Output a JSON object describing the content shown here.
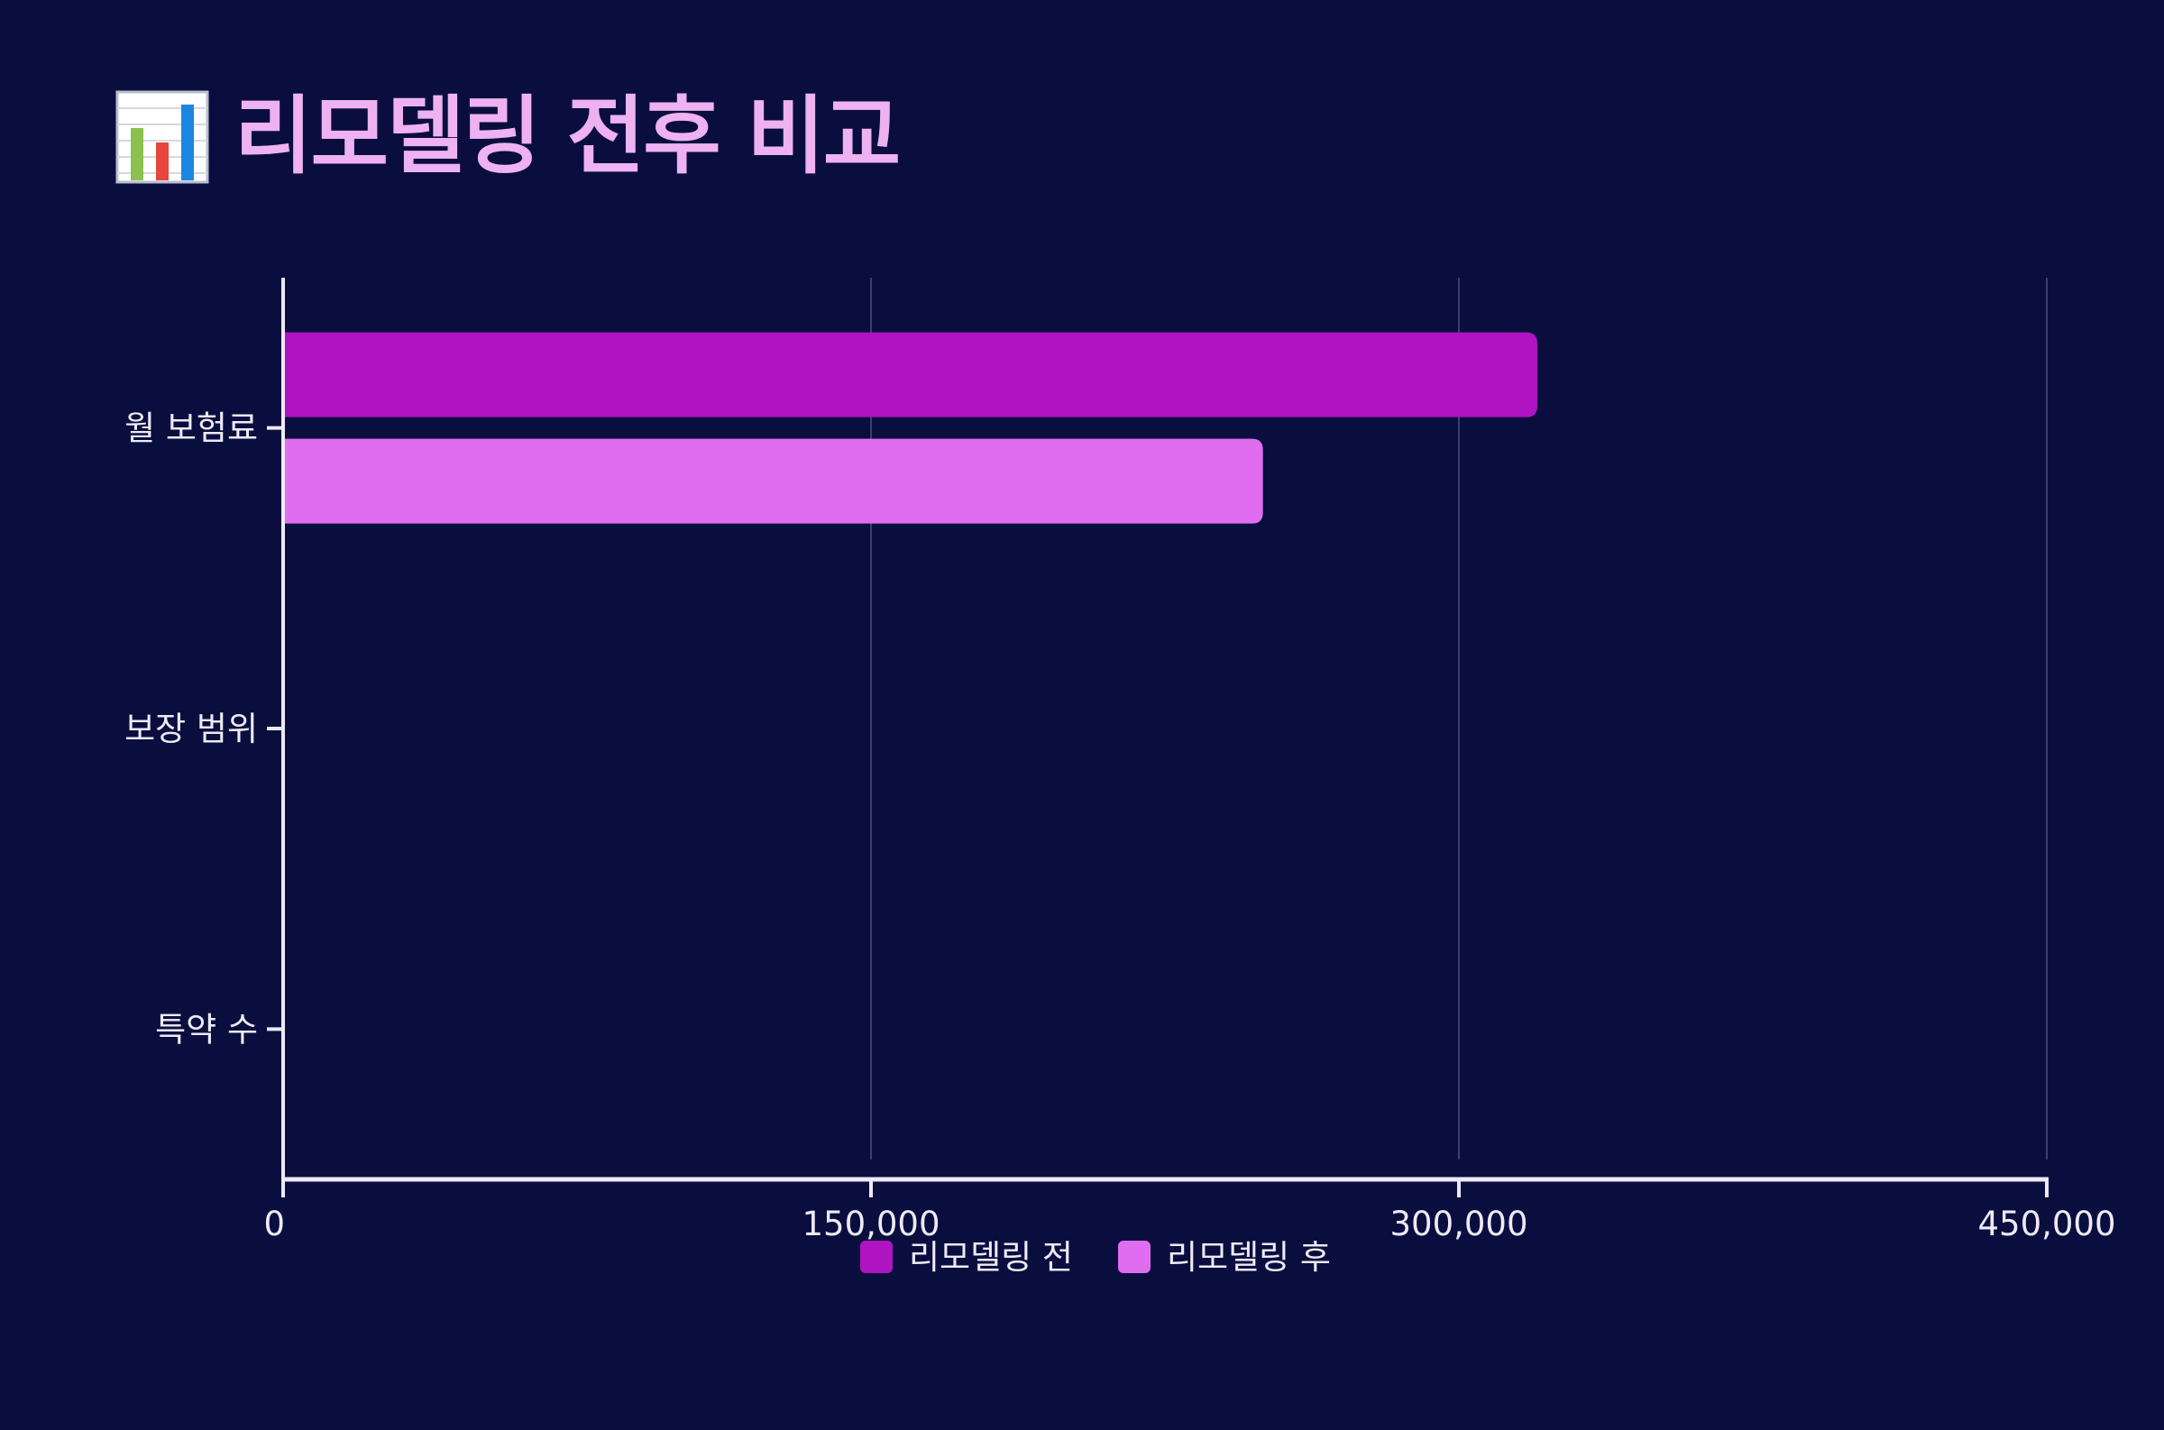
{
  "title": "리모델링 전후 비교",
  "title_icon": "bar-chart-icon",
  "colors": {
    "background": "#0a0e3f",
    "title": "#eeb1f2",
    "axis": "#eeeaf5",
    "grid": "#3a3f6e",
    "tick_text": "#eeeaf5"
  },
  "chart_data": {
    "type": "bar",
    "orientation": "horizontal",
    "categories": [
      "월 보험료",
      "보장 범위",
      "특약 수"
    ],
    "series": [
      {
        "name": "리모델링 전",
        "color": "#b014c2",
        "values": [
          320000,
          null,
          null
        ]
      },
      {
        "name": "리모델링 후",
        "color": "#e06df0",
        "values": [
          250000,
          null,
          null
        ]
      }
    ],
    "xlim": [
      0,
      450000
    ],
    "xticks": [
      0,
      150000,
      300000,
      450000
    ],
    "xtick_labels": [
      "0",
      "150,000",
      "300,000",
      "450,000"
    ],
    "grid": "vertical",
    "legend_placement": "bottom-center"
  }
}
